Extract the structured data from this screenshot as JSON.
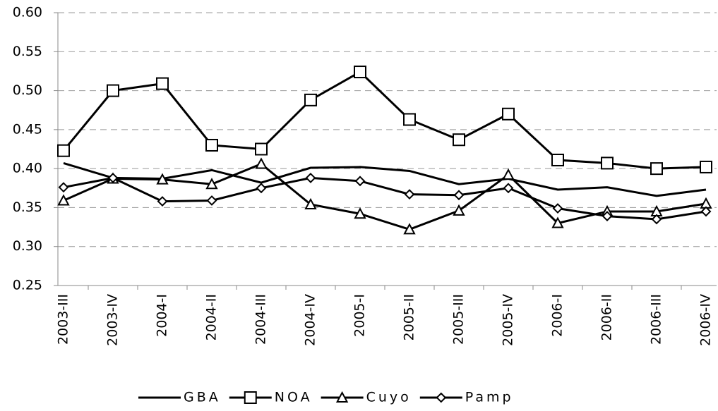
{
  "chart_data": {
    "type": "line",
    "categories": [
      "2003-III",
      "2003-IV",
      "2004-I",
      "2004-II",
      "2004-III",
      "2004-IV",
      "2005-I",
      "2005-II",
      "2005-III",
      "2005-IV",
      "2006-I",
      "2006-II",
      "2006-III",
      "2006-IV"
    ],
    "series": [
      {
        "name": "GBA",
        "color": "#000000",
        "marker": "none",
        "values": [
          0.407,
          0.388,
          0.387,
          0.398,
          0.382,
          0.401,
          0.402,
          0.397,
          0.38,
          0.387,
          0.373,
          0.376,
          0.365,
          0.373
        ]
      },
      {
        "name": "NOA",
        "color": "#000000",
        "marker": "square",
        "values": [
          0.423,
          0.5,
          0.509,
          0.43,
          0.425,
          0.488,
          0.524,
          0.463,
          0.437,
          0.47,
          0.411,
          0.407,
          0.4,
          0.402
        ]
      },
      {
        "name": "Cuyo",
        "color": "#000000",
        "marker": "triangle",
        "values": [
          0.359,
          0.387,
          0.386,
          0.38,
          0.406,
          0.354,
          0.342,
          0.322,
          0.346,
          0.392,
          0.33,
          0.345,
          0.345,
          0.355
        ]
      },
      {
        "name": "Pamp",
        "color": "#000000",
        "marker": "diamond",
        "values": [
          0.376,
          0.388,
          0.358,
          0.359,
          0.375,
          0.388,
          0.384,
          0.367,
          0.366,
          0.375,
          0.349,
          0.339,
          0.335,
          0.345
        ]
      }
    ],
    "ylim": [
      0.25,
      0.6
    ],
    "yticks": [
      0.25,
      {
        "value": 0.3,
        "label": "0.30"
      },
      0.35,
      {
        "value": 0.4,
        "label": "0.40"
      },
      0.45,
      {
        "value": 0.5,
        "label": "0.50"
      },
      0.55,
      {
        "value": 0.6,
        "label": "0.60"
      }
    ],
    "grid": true,
    "legend": "bottom"
  }
}
